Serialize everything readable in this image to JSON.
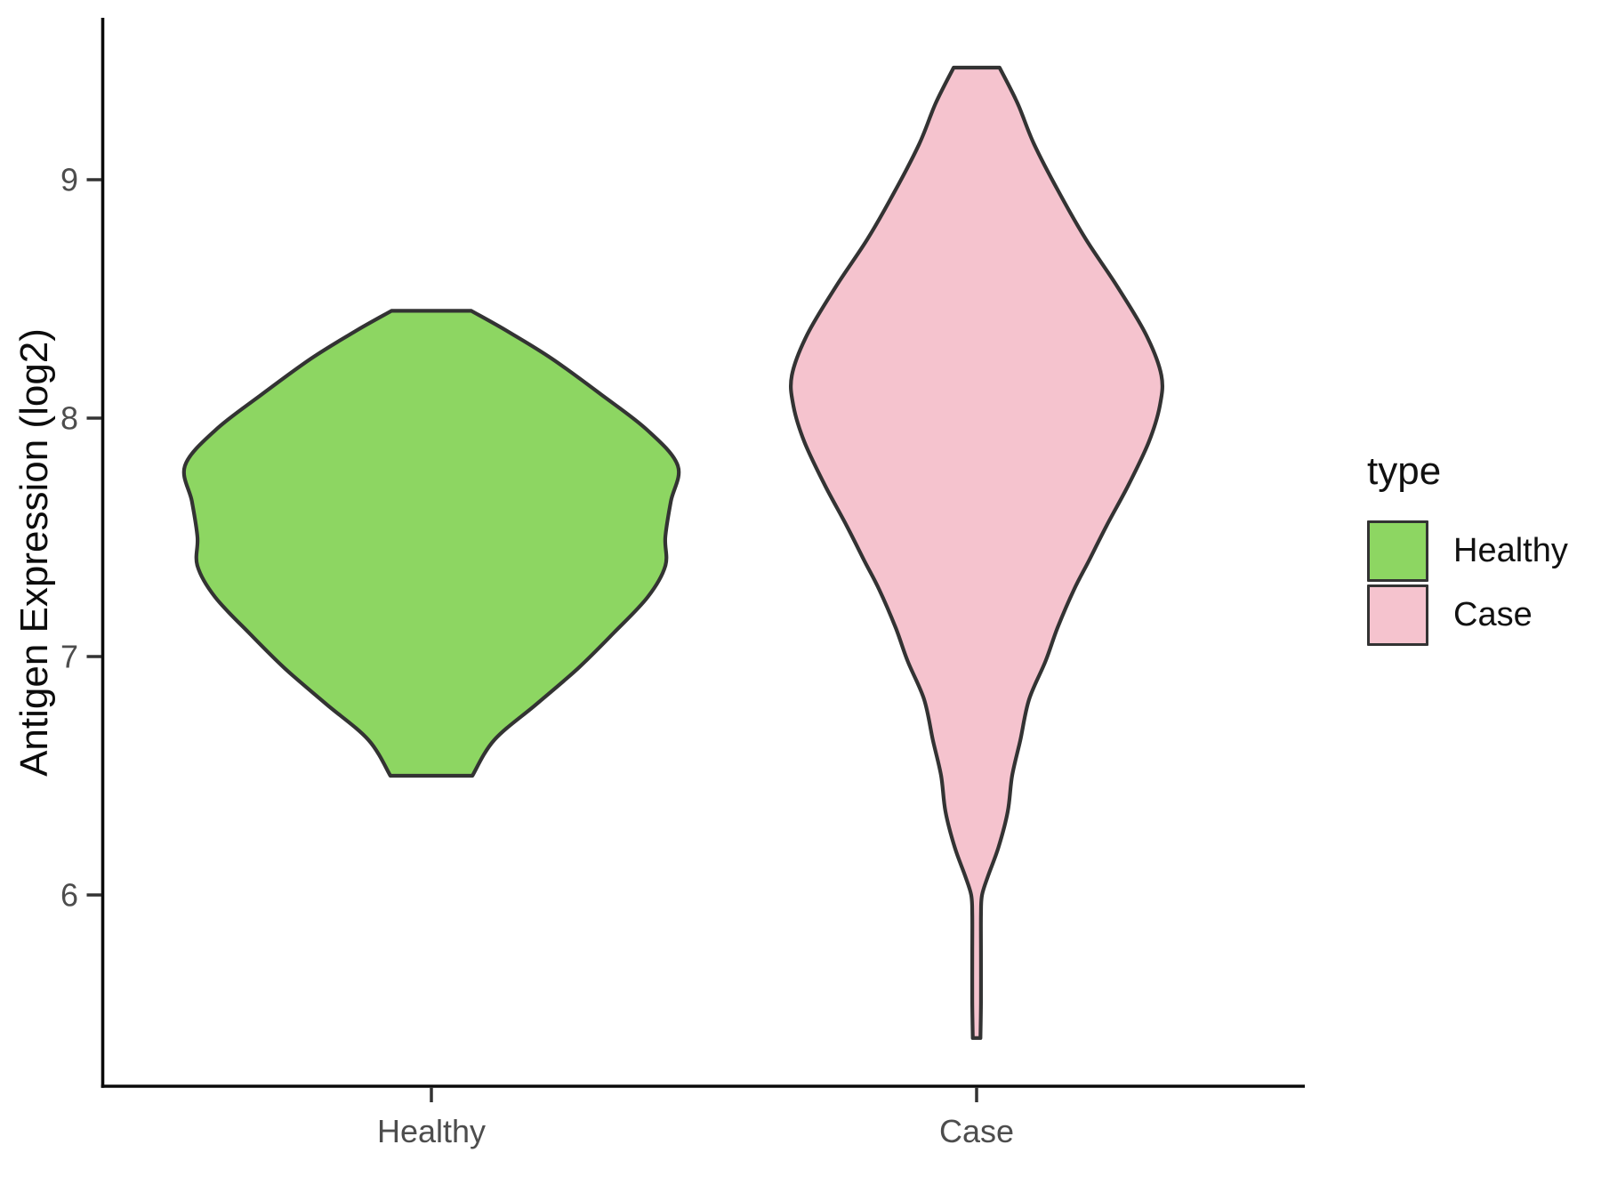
{
  "chart_data": {
    "type": "violin",
    "title": "",
    "xlabel": "",
    "ylabel": "Antigen Expression (log2)",
    "x_categories": [
      "Healthy",
      "Case"
    ],
    "y_tick_labels": [
      "9",
      "8",
      "7",
      "6"
    ],
    "y_tick_values": [
      9,
      8,
      7,
      6
    ],
    "ylim": [
      5.2,
      9.7
    ],
    "grid": false,
    "legend": {
      "title": "type",
      "position": "right",
      "entries": [
        {
          "label": "Healthy",
          "color": "#8DD662"
        },
        {
          "label": "Case",
          "color": "#F5C3CE"
        }
      ]
    },
    "style": {
      "outline_color": "#333333",
      "axis_line_color": "#0a0a0a",
      "tick_color": "#333333",
      "tick_label_color": "#4d4d4d",
      "background": "#ffffff"
    },
    "series": [
      {
        "name": "Healthy",
        "fill": "#8DD662",
        "summary": {
          "min": 6.5,
          "max": 8.45,
          "widest_at": 7.8,
          "max_width_units": 0.9
        },
        "profile": [
          [
            8.45,
            0.073
          ],
          [
            8.37,
            0.135
          ],
          [
            8.25,
            0.22
          ],
          [
            8.1,
            0.31
          ],
          [
            7.95,
            0.395
          ],
          [
            7.8,
            0.451
          ],
          [
            7.65,
            0.438
          ],
          [
            7.5,
            0.428
          ],
          [
            7.38,
            0.428
          ],
          [
            7.25,
            0.396
          ],
          [
            7.1,
            0.334
          ],
          [
            6.95,
            0.268
          ],
          [
            6.8,
            0.192
          ],
          [
            6.65,
            0.115
          ],
          [
            6.5,
            0.075
          ]
        ]
      },
      {
        "name": "Case",
        "fill": "#F5C3CE",
        "summary": {
          "min": 5.4,
          "max": 9.47,
          "widest_at": 8.15,
          "max_width_units": 0.68
        },
        "profile": [
          [
            9.47,
            0.042
          ],
          [
            9.32,
            0.075
          ],
          [
            9.15,
            0.105
          ],
          [
            8.95,
            0.15
          ],
          [
            8.75,
            0.2
          ],
          [
            8.55,
            0.258
          ],
          [
            8.35,
            0.31
          ],
          [
            8.18,
            0.338
          ],
          [
            8.05,
            0.335
          ],
          [
            7.9,
            0.315
          ],
          [
            7.72,
            0.278
          ],
          [
            7.55,
            0.238
          ],
          [
            7.4,
            0.205
          ],
          [
            7.28,
            0.178
          ],
          [
            7.12,
            0.148
          ],
          [
            6.98,
            0.126
          ],
          [
            6.82,
            0.096
          ],
          [
            6.65,
            0.08
          ],
          [
            6.5,
            0.065
          ],
          [
            6.35,
            0.057
          ],
          [
            6.2,
            0.04
          ],
          [
            6.08,
            0.021
          ],
          [
            6.0,
            0.01
          ],
          [
            5.92,
            0.008
          ],
          [
            5.75,
            0.008
          ],
          [
            5.55,
            0.008
          ],
          [
            5.4,
            0.007
          ]
        ]
      }
    ]
  }
}
